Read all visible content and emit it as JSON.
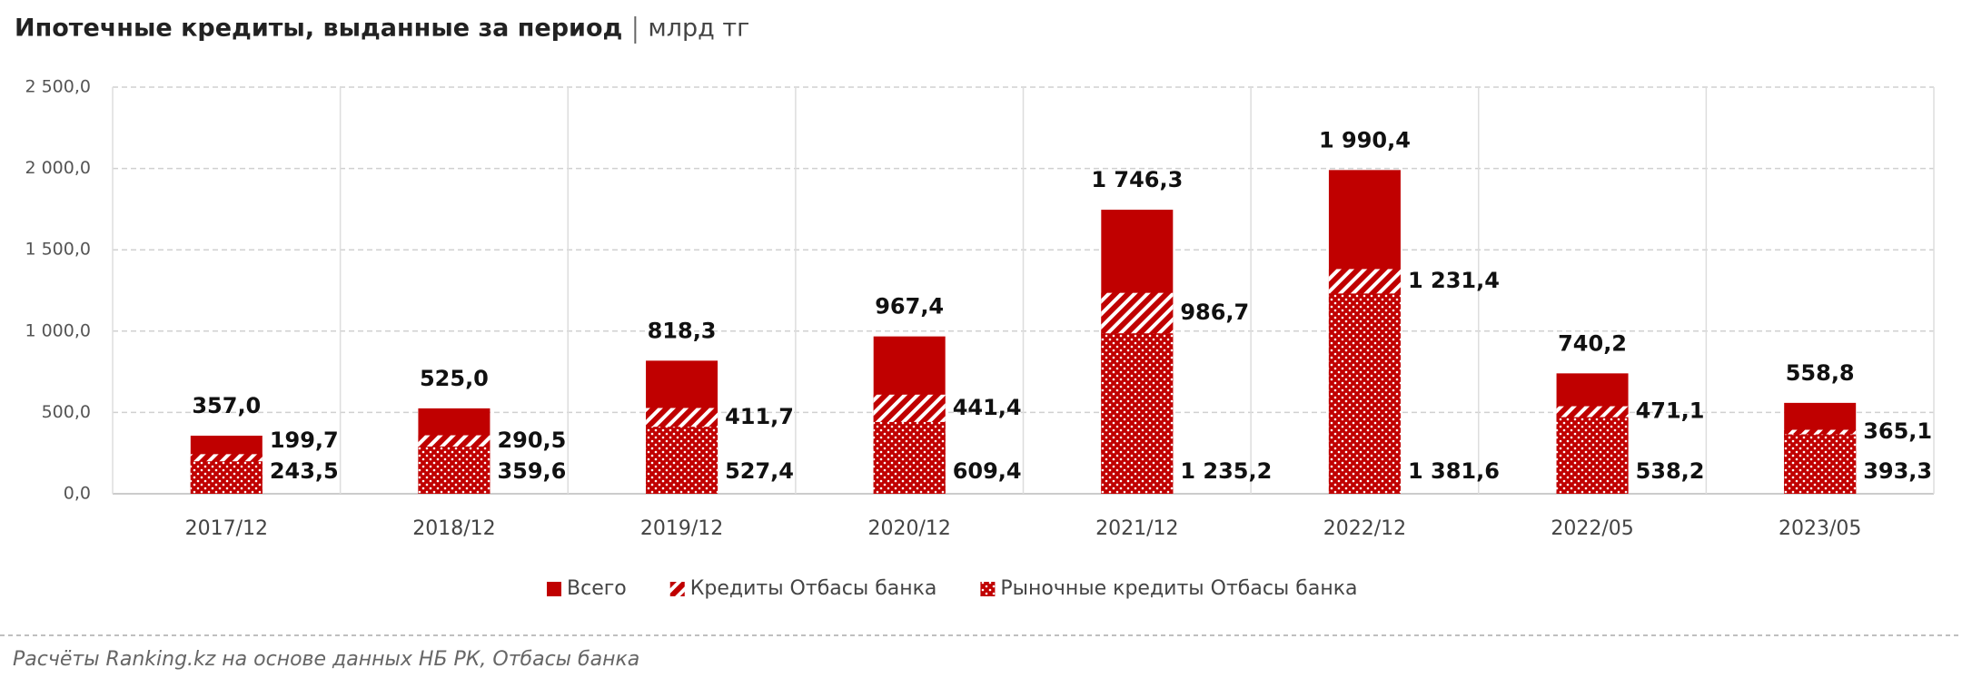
{
  "chart_data": {
    "type": "bar",
    "mode": "overlap",
    "title": "Ипотечные кредиты, выданные за период",
    "subtitle": "млрд тг",
    "source": "Расчёты Ranking.kz на основе данных НБ РК, Отбасы банка",
    "categories": [
      "2017/12",
      "2018/12",
      "2019/12",
      "2020/12",
      "2021/12",
      "2022/12",
      "2022/05",
      "2023/05"
    ],
    "series": [
      {
        "name": "Всего",
        "color": "#c00000",
        "fill": "solid",
        "values": [
          357.0,
          525.0,
          818.3,
          967.4,
          1746.3,
          1990.4,
          740.2,
          558.8
        ],
        "value_labels": [
          "357,0",
          "525,0",
          "818,3",
          "967,4",
          "1 746,3",
          "1 990,4",
          "740,2",
          "558,8"
        ]
      },
      {
        "name": "Кредиты Отбасы банка",
        "color": "#c00000",
        "fill": "hatch",
        "values": [
          243.5,
          359.6,
          527.4,
          609.4,
          1235.2,
          1381.6,
          538.2,
          393.3
        ],
        "value_labels": [
          "243,5",
          "359,6",
          "527,4",
          "609,4",
          "1 235,2",
          "1 381,6",
          "538,2",
          "393,3"
        ]
      },
      {
        "name": "Рыночные кредиты Отбасы банка",
        "color": "#c00000",
        "fill": "dots",
        "values": [
          199.7,
          290.5,
          411.7,
          441.4,
          986.7,
          1231.4,
          471.1,
          365.1
        ],
        "value_labels": [
          "199,7",
          "290,5",
          "411,7",
          "441,4",
          "986,7",
          "1 231,4",
          "471,1",
          "365,1"
        ]
      }
    ],
    "ylim": [
      0,
      2500
    ],
    "yticks": [
      {
        "value": 0,
        "label": "0,0"
      },
      {
        "value": 500,
        "label": "500,0"
      },
      {
        "value": 1000,
        "label": "1 000,0"
      },
      {
        "value": 1500,
        "label": "1 500,0"
      },
      {
        "value": 2000,
        "label": "2 000,0"
      },
      {
        "value": 2500,
        "label": "2 500,0"
      }
    ],
    "grid": true,
    "legend": "bottom"
  }
}
